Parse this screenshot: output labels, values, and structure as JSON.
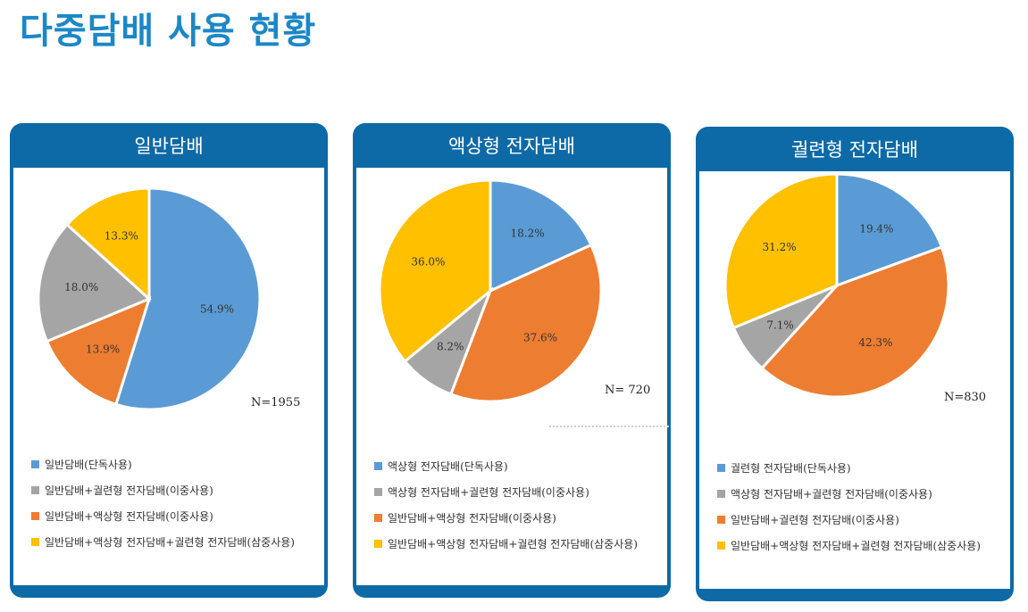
{
  "page_title": "다중담배 사용 현황",
  "colors": {
    "blue": "#5b9bd5",
    "orange": "#ed7d31",
    "gray": "#a5a5a5",
    "yellow": "#ffc000",
    "header": "#0d6aa6",
    "title": "#1c87c6"
  },
  "chart_data": [
    {
      "type": "pie",
      "title": "일반담배",
      "n_label": "N=1955",
      "slices": [
        {
          "label": "일반담배(단독사용)",
          "value": 54.9,
          "display": "54.9%",
          "color": "#5b9bd5"
        },
        {
          "label": "일반담배+액상형 전자담배(이중사용)",
          "value": 13.9,
          "display": "13.9%",
          "color": "#ed7d31"
        },
        {
          "label": "일반담배+궐련형 전자담배(이중사용)",
          "value": 18.0,
          "display": "18.0%",
          "color": "#a5a5a5"
        },
        {
          "label": "일반담배+액상형 전자담배+궐련형 전자담배(삼중사용)",
          "value": 13.3,
          "display": "13.3%",
          "color": "#ffc000"
        }
      ],
      "legend": [
        {
          "label": "일반담배(단독사용)",
          "color": "#5b9bd5"
        },
        {
          "label": "일반담배+궐련형 전자담배(이중사용)",
          "color": "#a5a5a5"
        },
        {
          "label": "일반담배+액상형 전자담배(이중사용)",
          "color": "#ed7d31"
        },
        {
          "label": "일반담배+액상형 전자담배+궐련형 전자담배(삼중사용)",
          "color": "#ffc000"
        }
      ]
    },
    {
      "type": "pie",
      "title": "액상형 전자담배",
      "n_label": "N= 720",
      "slices": [
        {
          "label": "액상형 전자담배(단독사용)",
          "value": 18.2,
          "display": "18.2%",
          "color": "#5b9bd5"
        },
        {
          "label": "일반담배+액상형 전자담배(이중사용)",
          "value": 37.6,
          "display": "37.6%",
          "color": "#ed7d31"
        },
        {
          "label": "액상형 전자담배+궐련형 전자담배(이중사용)",
          "value": 8.2,
          "display": "8.2%",
          "color": "#a5a5a5"
        },
        {
          "label": "일반담배+액상형 전자담배+궐련형 전자담배(삼중사용)",
          "value": 36.0,
          "display": "36.0%",
          "color": "#ffc000"
        }
      ],
      "legend": [
        {
          "label": "액상형 전자담배(단독사용)",
          "color": "#5b9bd5"
        },
        {
          "label": "액상형 전자담배+궐련형 전자담배(이중사용)",
          "color": "#a5a5a5"
        },
        {
          "label": "일반담배+액상형 전자담배(이중사용)",
          "color": "#ed7d31"
        },
        {
          "label": "일반담배+액상형 전자담배+궐련형 전자담배(삼중사용)",
          "color": "#ffc000"
        }
      ]
    },
    {
      "type": "pie",
      "title": "궐련형 전자담배",
      "n_label": "N=830",
      "slices": [
        {
          "label": "궐련형 전자담배(단독사용)",
          "value": 19.4,
          "display": "19.4%",
          "color": "#5b9bd5"
        },
        {
          "label": "일반담배+궐련형 전자담배(이중사용)",
          "value": 42.3,
          "display": "42.3%",
          "color": "#ed7d31"
        },
        {
          "label": "액상형 전자담배+궐련형 전자담배(이중사용)",
          "value": 7.1,
          "display": "7.1%",
          "color": "#a5a5a5"
        },
        {
          "label": "일반담배+액상형 전자담배+궐련형 전자담배(삼중사용)",
          "value": 31.2,
          "display": "31.2%",
          "color": "#ffc000"
        }
      ],
      "legend": [
        {
          "label": "궐련형 전자담배(단독사용)",
          "color": "#5b9bd5"
        },
        {
          "label": "액상형 전자담배+궐련형 전자담배(이중사용)",
          "color": "#a5a5a5"
        },
        {
          "label": "일반담배+궐련형 전자담배(이중사용)",
          "color": "#ed7d31"
        },
        {
          "label": "일반담배+액상형 전자담배+궐련형 전자담배(삼중사용)",
          "color": "#ffc000"
        }
      ]
    }
  ]
}
